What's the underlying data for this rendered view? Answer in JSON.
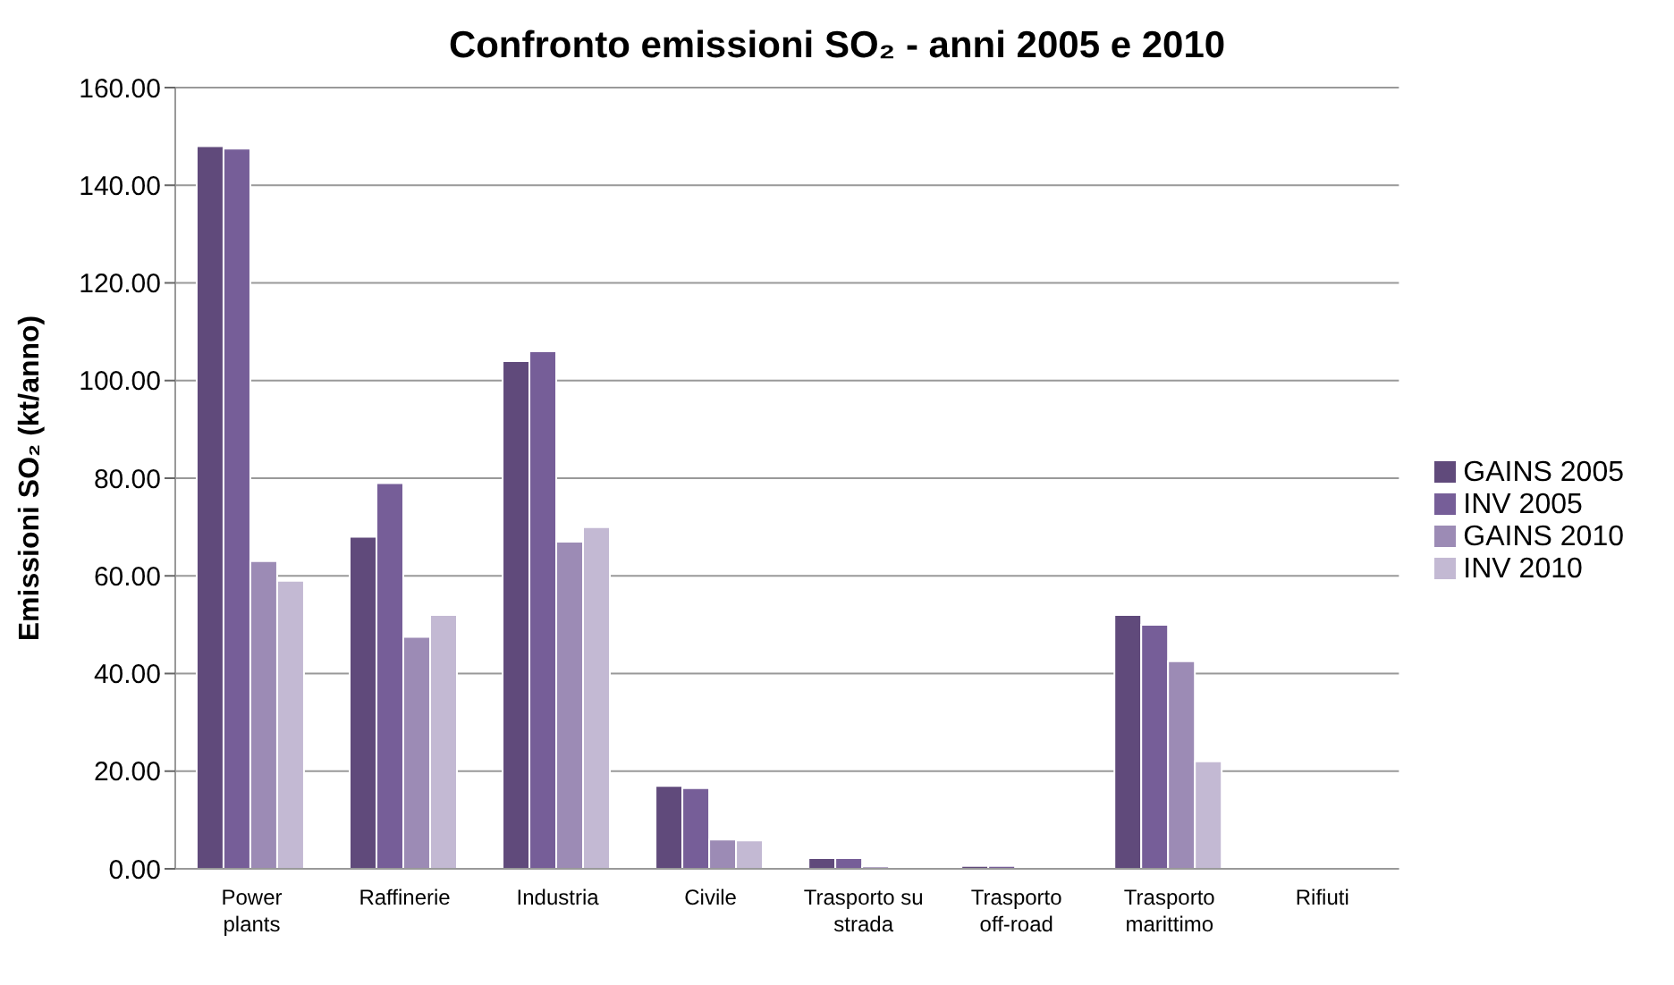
{
  "chart_data": {
    "type": "bar",
    "title": "Confronto emissioni SO₂ - anni 2005 e 2010",
    "ylabel": "Emissioni SO₂ (kt/anno)",
    "categories": [
      "Power plants",
      "Raffinerie",
      "Industria",
      "Civile",
      "Trasporto su strada",
      "Trasporto off-road",
      "Trasporto marittimo",
      "Rifiuti"
    ],
    "series": [
      {
        "name": "GAINS 2005",
        "color": "#604a7b",
        "values": [
          148,
          68,
          104,
          17,
          2.2,
          0.6,
          52,
          0
        ]
      },
      {
        "name": "INV 2005",
        "color": "#765e98",
        "values": [
          147.5,
          79,
          106,
          16.5,
          2.2,
          0.6,
          50,
          0
        ]
      },
      {
        "name": "GAINS 2010",
        "color": "#9c8bb5",
        "values": [
          63,
          47.5,
          67,
          6,
          0.5,
          null,
          42.5,
          0
        ]
      },
      {
        "name": "INV 2010",
        "color": "#c3b9d3",
        "values": [
          59,
          52,
          70,
          5.8,
          null,
          null,
          22,
          0
        ]
      }
    ],
    "ylim": [
      0,
      160
    ],
    "yticks": [
      {
        "value": 0,
        "label": "0.00"
      },
      {
        "value": 20,
        "label": "20.00"
      },
      {
        "value": 40,
        "label": "40.00"
      },
      {
        "value": 60,
        "label": "60.00"
      },
      {
        "value": 80,
        "label": "80.00"
      },
      {
        "value": 100,
        "label": "100.00"
      },
      {
        "value": 120,
        "label": "120.00"
      },
      {
        "value": 140,
        "label": "140.00"
      },
      {
        "value": 160,
        "label": "160.00"
      }
    ],
    "grid": "y",
    "legend": "right"
  }
}
